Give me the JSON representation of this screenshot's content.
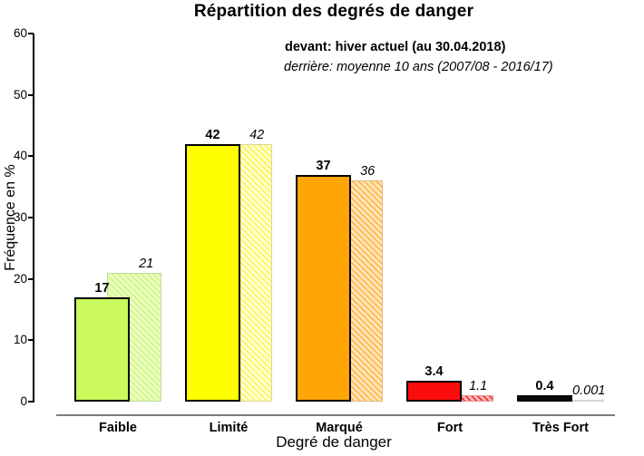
{
  "chart_data": {
    "type": "bar",
    "title": "Répartition des degrés de danger",
    "subtitle_front": "devant: hiver actuel (au 30.04.2018)",
    "subtitle_back": "derrière: moyenne 10 ans (2007/08 - 2016/17)",
    "xlabel": "Degré de danger",
    "ylabel": "Fréquence en %",
    "ylim": [
      0,
      60
    ],
    "yticks": [
      0,
      10,
      20,
      30,
      40,
      50,
      60
    ],
    "grid": false,
    "legend_position": "top-center-inside",
    "categories": [
      "Faible",
      "Limité",
      "Marqué",
      "Fort",
      "Très Fort"
    ],
    "series": [
      {
        "name": "hiver actuel (au 30.04.2018)",
        "position": "devant",
        "style": "solid",
        "values": [
          17,
          42,
          37,
          3.4,
          0.4
        ],
        "labels": [
          "17",
          "42",
          "37",
          "3.4",
          "0.4"
        ]
      },
      {
        "name": "moyenne 10 ans (2007/08 - 2016/17)",
        "position": "derrière",
        "style": "hatched",
        "values": [
          21,
          42,
          36,
          1.1,
          0.001
        ],
        "labels": [
          "21",
          "42",
          "36",
          "1.1",
          "0.001"
        ]
      }
    ],
    "category_colors": [
      {
        "category": "Faible",
        "front": "#c9f95c",
        "hatch_base": "#eafcc6",
        "hatch_stripe": "#cdf773",
        "back_border": "#c3d89e"
      },
      {
        "category": "Limité",
        "front": "#ffff00",
        "hatch_base": "#ffffd0",
        "hatch_stripe": "#fdf456",
        "back_border": "#d9d98f"
      },
      {
        "category": "Marqué",
        "front": "#ffa505",
        "hatch_base": "#ffe5b8",
        "hatch_stripe": "#ffb13d",
        "back_border": "#dfb87f"
      },
      {
        "category": "Fort",
        "front": "#fb0d0d",
        "hatch_base": "#ffbcbc",
        "hatch_stripe": "#f31a1a",
        "back_border": "#e09090"
      },
      {
        "category": "Très Fort",
        "front": "#0a0a0a",
        "hatch_base": "#ededed",
        "hatch_stripe": "#e0e0e0",
        "back_border": "#d4d4d4"
      }
    ],
    "axis_color": "#000000",
    "x_axis_line_color": "#7d7d7d"
  }
}
